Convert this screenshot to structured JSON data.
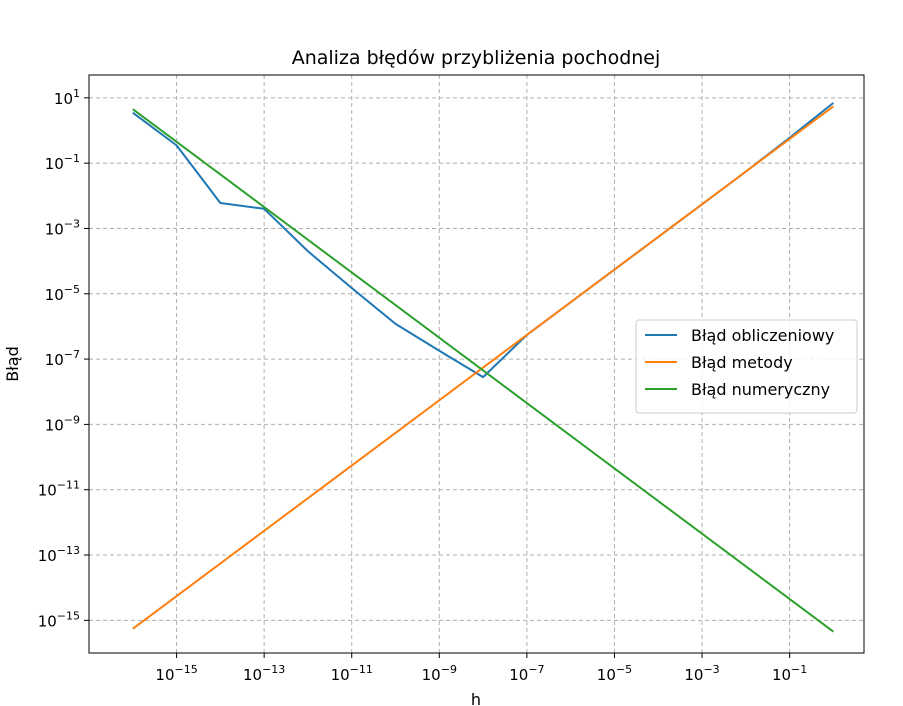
{
  "chart_data": {
    "type": "line",
    "title": "Analiza błędów przybliżenia pochodnej",
    "xlabel": "h",
    "ylabel": "Błąd",
    "xscale": "log",
    "yscale": "log",
    "xlim": [
      1e-17,
      5
    ],
    "ylim": [
      1e-16,
      50
    ],
    "xtick_exponents": [
      -15,
      -13,
      -11,
      -9,
      -7,
      -5,
      -3,
      -1
    ],
    "ytick_exponents": [
      1,
      -1,
      -3,
      -5,
      -7,
      -9,
      -11,
      -13,
      -15
    ],
    "tick_base": "10",
    "grid": true,
    "legend_position": "center-right",
    "series": [
      {
        "name": "Błąd obliczeniowy",
        "color": "#1f77b4",
        "x": [
          1e-16,
          1e-15,
          1e-14,
          1e-13,
          1e-12,
          1e-11,
          1e-10,
          1e-09,
          1e-08,
          1e-07,
          1e-06,
          1e-05,
          0.0001,
          0.001,
          0.01,
          0.1,
          1
        ],
        "y": [
          3.5,
          0.35,
          0.006,
          0.004,
          0.0002,
          1.5e-05,
          1.2e-06,
          1.8e-07,
          2.8e-08,
          5.5e-07,
          5.5e-06,
          5.5e-05,
          0.00055,
          0.0055,
          0.055,
          0.6,
          7
        ]
      },
      {
        "name": "Błąd metody",
        "color": "#ff7f0e",
        "x": [
          1e-16,
          1
        ],
        "y": [
          5.5e-16,
          5.5
        ]
      },
      {
        "name": "Błąd numeryczny",
        "color": "#2ca02c",
        "x": [
          1e-16,
          1
        ],
        "y": [
          4.5,
          4.5e-16
        ]
      }
    ]
  }
}
